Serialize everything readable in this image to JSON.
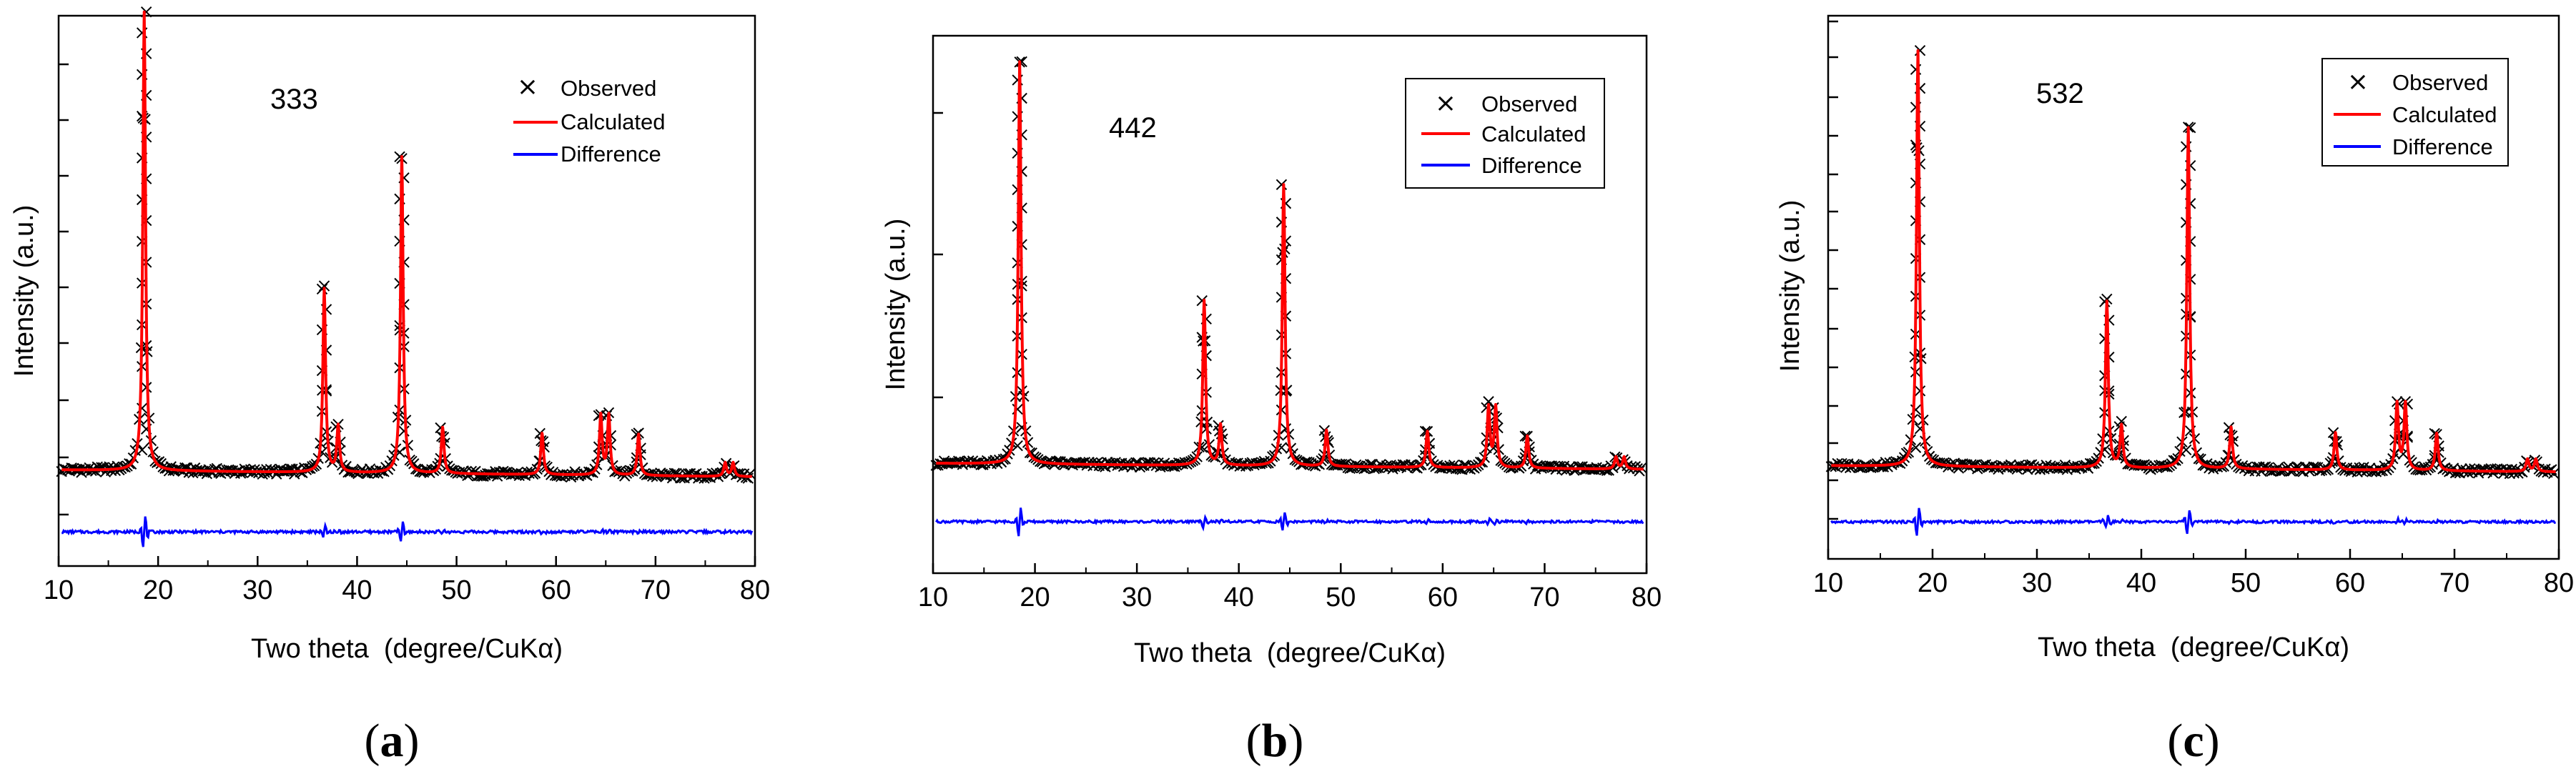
{
  "chart_data": [
    {
      "type": "line",
      "panel_label": "a",
      "annotation": "333",
      "xlabel": "Two theta  (degree/CuKα)",
      "ylabel": "Intensity (a.u.)",
      "xlim": [
        10,
        80
      ],
      "ylim": [
        -0.15,
        1.0
      ],
      "xticks": [
        10,
        20,
        30,
        40,
        50,
        60,
        70,
        80
      ],
      "legend": {
        "position": "top-right",
        "entries": [
          "Observed",
          "Calculated",
          "Difference"
        ]
      },
      "colors": {
        "observed": "#000000",
        "calculated": "#ff0000",
        "difference": "#0000ff"
      },
      "baseline": 0.0,
      "peaks": [
        [
          18.6,
          1.0
        ],
        [
          36.7,
          0.4
        ],
        [
          38.1,
          0.1
        ],
        [
          44.5,
          0.69
        ],
        [
          48.6,
          0.1
        ],
        [
          58.6,
          0.09
        ],
        [
          64.5,
          0.13
        ],
        [
          65.3,
          0.13
        ],
        [
          68.3,
          0.09
        ],
        [
          77.0,
          0.03
        ],
        [
          77.8,
          0.03
        ]
      ],
      "difference_offset": -0.1
    },
    {
      "type": "line",
      "panel_label": "b",
      "annotation": "442",
      "xlabel": "Two theta  (degree/CuKα)",
      "ylabel": "Intensity (a.u.)",
      "xlim": [
        10,
        80
      ],
      "ylim": [
        -0.18,
        1.0
      ],
      "xticks": [
        10,
        20,
        30,
        40,
        50,
        60,
        70,
        80
      ],
      "legend": {
        "position": "top-right",
        "entries": [
          "Observed",
          "Calculated",
          "Difference"
        ]
      },
      "colors": {
        "observed": "#000000",
        "calculated": "#ff0000",
        "difference": "#0000ff"
      },
      "baseline": 0.0,
      "peaks": [
        [
          18.5,
          1.0
        ],
        [
          36.6,
          0.41
        ],
        [
          38.2,
          0.1
        ],
        [
          44.4,
          0.7
        ],
        [
          48.6,
          0.09
        ],
        [
          58.5,
          0.09
        ],
        [
          64.5,
          0.15
        ],
        [
          65.2,
          0.15
        ],
        [
          68.3,
          0.08
        ],
        [
          77.0,
          0.03
        ],
        [
          77.8,
          0.03
        ]
      ],
      "difference_offset": -0.11
    },
    {
      "type": "line",
      "panel_label": "c",
      "annotation": "532",
      "xlabel": "Two theta  (degree/CuKα)",
      "ylabel": "Intensity (a.u.)",
      "xlim": [
        10,
        80
      ],
      "ylim": [
        -0.18,
        1.0
      ],
      "xticks": [
        10,
        20,
        30,
        40,
        50,
        60,
        70,
        80
      ],
      "legend": {
        "position": "top-right",
        "entries": [
          "Observed",
          "Calculated",
          "Difference"
        ]
      },
      "colors": {
        "observed": "#000000",
        "calculated": "#ff0000",
        "difference": "#0000ff"
      },
      "baseline": 0.0,
      "peaks": [
        [
          18.6,
          1.0
        ],
        [
          36.7,
          0.4
        ],
        [
          38.1,
          0.1
        ],
        [
          44.5,
          0.82
        ],
        [
          48.6,
          0.1
        ],
        [
          58.6,
          0.09
        ],
        [
          64.5,
          0.16
        ],
        [
          65.3,
          0.16
        ],
        [
          68.3,
          0.09
        ],
        [
          77.0,
          0.03
        ],
        [
          77.8,
          0.03
        ]
      ],
      "difference_offset": -0.1
    }
  ]
}
